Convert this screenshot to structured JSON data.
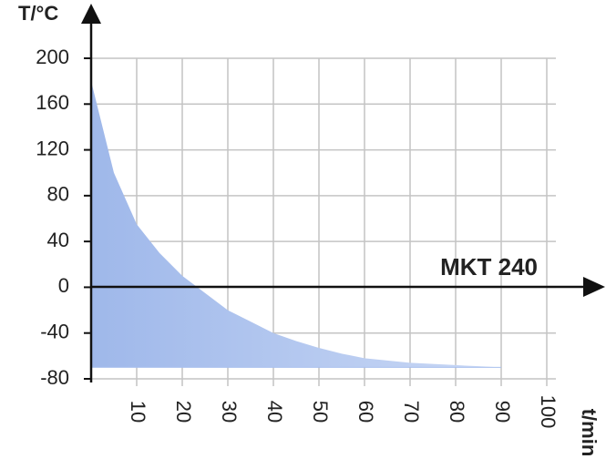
{
  "chart_data": {
    "type": "area",
    "y_label": "T/°C",
    "x_label": "t/min",
    "annotation": "MKT 240",
    "x": [
      0,
      5,
      10,
      15,
      20,
      25,
      30,
      35,
      40,
      45,
      50,
      55,
      60,
      65,
      70,
      75,
      80,
      85,
      90
    ],
    "values": [
      180,
      100,
      55,
      30,
      10,
      -5,
      -20,
      -30,
      -40,
      -47,
      -53,
      -58,
      -62,
      -64,
      -66,
      -67,
      -68,
      -69,
      -70
    ],
    "area_base": -70,
    "color": "#a9c0ee",
    "xlim": [
      0,
      102
    ],
    "ylim": [
      -80,
      200
    ],
    "xticks": [
      10,
      20,
      30,
      40,
      50,
      60,
      70,
      80,
      90,
      100
    ],
    "yticks": [
      -80,
      -40,
      0,
      40,
      80,
      120,
      160,
      200
    ],
    "grid": true
  }
}
